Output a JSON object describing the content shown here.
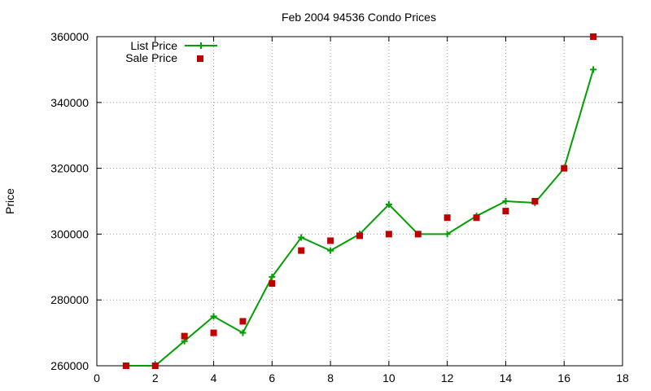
{
  "chart_data": {
    "type": "line",
    "title": "Feb 2004 94536 Condo Prices",
    "xlabel": "",
    "ylabel": "Price",
    "xlim": [
      0,
      18
    ],
    "ylim": [
      260000,
      360000
    ],
    "x_ticks": [
      0,
      2,
      4,
      6,
      8,
      10,
      12,
      14,
      16,
      18
    ],
    "y_ticks": [
      260000,
      280000,
      300000,
      320000,
      340000,
      360000
    ],
    "grid": true,
    "legend_position": "top-left",
    "series": [
      {
        "name": "List Price",
        "style": "line+plus",
        "color": "#00a000",
        "x": [
          1,
          2,
          3,
          4,
          5,
          6,
          7,
          8,
          9,
          10,
          11,
          12,
          13,
          14,
          15,
          16,
          17
        ],
        "values": [
          260000,
          260000,
          267500,
          275000,
          270000,
          287000,
          299000,
          295000,
          300000,
          309000,
          300000,
          300000,
          305500,
          310000,
          309500,
          320000,
          350000
        ]
      },
      {
        "name": "Sale Price",
        "style": "square",
        "color": "#c00000",
        "x": [
          1,
          2,
          3,
          4,
          5,
          6,
          7,
          8,
          9,
          10,
          11,
          12,
          13,
          14,
          15,
          16,
          17
        ],
        "values": [
          260000,
          260000,
          269000,
          270000,
          273500,
          285000,
          295000,
          298000,
          299500,
          300000,
          300000,
          305000,
          305000,
          307000,
          310000,
          320000,
          360000
        ]
      }
    ]
  }
}
